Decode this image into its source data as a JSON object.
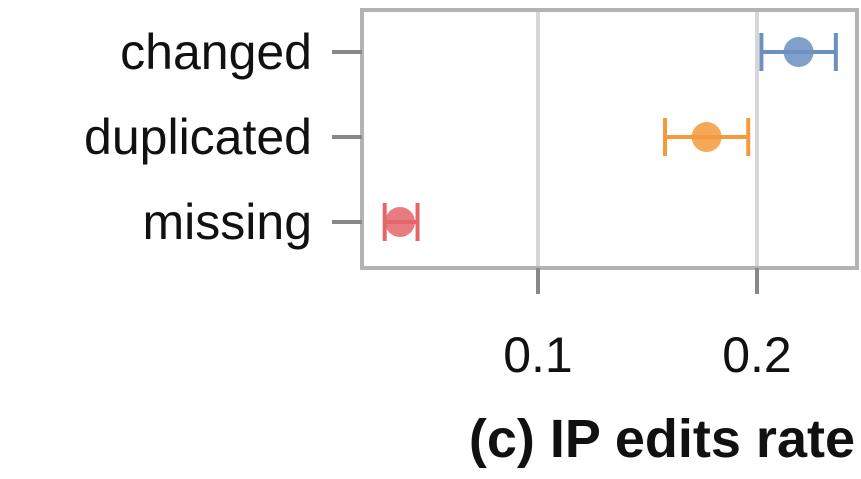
{
  "chart_data": {
    "type": "scatter",
    "orientation": "horizontal-dot-with-error-bars",
    "categories": [
      "changed",
      "duplicated",
      "missing"
    ],
    "points": [
      {
        "category": "changed",
        "value": 0.219,
        "ci_low": 0.202,
        "ci_high": 0.236,
        "color": "#6b8fbf"
      },
      {
        "category": "duplicated",
        "value": 0.177,
        "ci_low": 0.158,
        "ci_high": 0.196,
        "color": "#f59a3c"
      },
      {
        "category": "missing",
        "value": 0.037,
        "ci_low": 0.03,
        "ci_high": 0.045,
        "color": "#e5656b"
      }
    ],
    "x_ticks": [
      {
        "value": 0.1,
        "label": "0.1"
      },
      {
        "value": 0.2,
        "label": "0.2"
      }
    ],
    "xlim": [
      0.02,
      0.24
    ],
    "grid": "vertical",
    "title": "(c) IP edits rate",
    "xlabel": "",
    "ylabel": ""
  }
}
